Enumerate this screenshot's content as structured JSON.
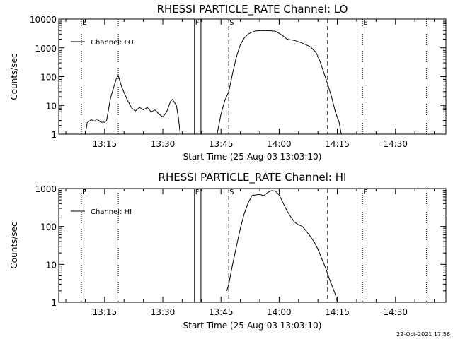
{
  "chart_data": [
    {
      "type": "line",
      "title": "RHESSI PARTICLE_RATE Channel: LO",
      "xlabel": "Start Time (25-Aug-03 13:03:10)",
      "ylabel": "Counts/sec",
      "yscale": "log",
      "ylim": [
        1,
        10000
      ],
      "yticks": [
        "1",
        "10",
        "100",
        "1000",
        "10000"
      ],
      "xticks": [
        "13:15",
        "13:30",
        "13:45",
        "14:00",
        "14:15",
        "14:30"
      ],
      "legend": "Channel: LO",
      "legend_position": "top-left",
      "flags": [
        "E",
        "F",
        "S",
        "E"
      ],
      "series": [
        {
          "name": "Channel: LO",
          "points": [
            [
              "13:10:00",
              1.0
            ],
            [
              "13:10:30",
              2.5
            ],
            [
              "13:11:30",
              3.2
            ],
            [
              "13:12:30",
              2.8
            ],
            [
              "13:13:00",
              3.4
            ],
            [
              "13:14:00",
              2.6
            ],
            [
              "13:15:00",
              2.6
            ],
            [
              "13:15:30",
              3.0
            ],
            [
              "13:16:30",
              18
            ],
            [
              "13:17:30",
              50
            ],
            [
              "13:18:00",
              85
            ],
            [
              "13:18:30",
              110
            ],
            [
              "13:19:00",
              65
            ],
            [
              "13:19:30",
              40
            ],
            [
              "13:20:00",
              28
            ],
            [
              "13:21:00",
              14
            ],
            [
              "13:22:00",
              8
            ],
            [
              "13:23:00",
              6.5
            ],
            [
              "13:24:00",
              8.5
            ],
            [
              "13:25:00",
              7
            ],
            [
              "13:26:00",
              8.5
            ],
            [
              "13:27:00",
              6
            ],
            [
              "13:28:00",
              7
            ],
            [
              "13:29:00",
              5
            ],
            [
              "13:30:00",
              4
            ],
            [
              "13:31:00",
              6
            ],
            [
              "13:32:00",
              14
            ],
            [
              "13:32:30",
              16
            ],
            [
              "13:33:30",
              10
            ],
            [
              "13:34:00",
              4
            ],
            [
              "13:34:30",
              1.0
            ],
            null,
            [
              "13:44:00",
              1.0
            ],
            [
              "13:45:00",
              5
            ],
            [
              "13:46:00",
              15
            ],
            [
              "13:47:00",
              30
            ],
            [
              "13:48:00",
              130
            ],
            [
              "13:49:00",
              500
            ],
            [
              "13:50:00",
              1300
            ],
            [
              "13:51:00",
              2200
            ],
            [
              "13:52:00",
              3000
            ],
            [
              "13:53:00",
              3500
            ],
            [
              "13:54:00",
              3900
            ],
            [
              "13:56:00",
              4000
            ],
            [
              "13:58:00",
              3900
            ],
            [
              "13:59:00",
              3800
            ],
            [
              "14:00:00",
              3200
            ],
            [
              "14:01:00",
              2600
            ],
            [
              "14:02:00",
              2000
            ],
            [
              "14:04:00",
              1800
            ],
            [
              "14:06:00",
              1450
            ],
            [
              "14:08:00",
              1100
            ],
            [
              "14:09:30",
              700
            ],
            [
              "14:10:30",
              350
            ],
            [
              "14:11:30",
              140
            ],
            [
              "14:12:30",
              55
            ],
            [
              "14:13:30",
              20
            ],
            [
              "14:14:30",
              6
            ],
            [
              "14:15:30",
              2.5
            ],
            [
              "14:16:00",
              1.0
            ]
          ]
        }
      ],
      "vlines": [
        {
          "time": "13:09:00",
          "style": "dotted"
        },
        {
          "time": "13:18:30",
          "style": "dotted"
        },
        {
          "time": "13:38:10",
          "style": "solid"
        },
        {
          "time": "13:39:50",
          "style": "solid"
        },
        {
          "time": "13:47:00",
          "style": "dashed"
        },
        {
          "time": "14:12:30",
          "style": "dashed"
        },
        {
          "time": "14:21:30",
          "style": "dotted"
        },
        {
          "time": "14:38:00",
          "style": "dotted"
        }
      ]
    },
    {
      "type": "line",
      "title": "RHESSI PARTICLE_RATE Channel: HI",
      "xlabel": "Start Time (25-Aug-03 13:03:10)",
      "ylabel": "Counts/sec",
      "yscale": "log",
      "ylim": [
        1,
        1000
      ],
      "yticks": [
        "1",
        "10",
        "100",
        "1000"
      ],
      "xticks": [
        "13:15",
        "13:30",
        "13:45",
        "14:00",
        "14:15",
        "14:30"
      ],
      "legend": "Channel: HI",
      "legend_position": "top-left",
      "flags": [
        "E",
        "F",
        "S",
        "E"
      ],
      "series": [
        {
          "name": "Channel: HI",
          "points": [
            [
              "13:46:30",
              2.0
            ],
            [
              "13:47:00",
              3.0
            ],
            [
              "13:48:00",
              10
            ],
            [
              "13:49:00",
              30
            ],
            [
              "13:50:00",
              90
            ],
            [
              "13:51:00",
              220
            ],
            [
              "13:52:00",
              420
            ],
            [
              "13:53:00",
              650
            ],
            [
              "13:54:00",
              680
            ],
            [
              "13:55:00",
              700
            ],
            [
              "13:56:00",
              650
            ],
            [
              "13:57:00",
              780
            ],
            [
              "13:58:00",
              880
            ],
            [
              "13:59:00",
              860
            ],
            [
              "14:00:00",
              680
            ],
            [
              "14:01:00",
              420
            ],
            [
              "14:02:00",
              260
            ],
            [
              "14:03:00",
              180
            ],
            [
              "14:04:00",
              130
            ],
            [
              "14:05:00",
              110
            ],
            [
              "14:06:00",
              100
            ],
            [
              "14:07:00",
              75
            ],
            [
              "14:08:00",
              55
            ],
            [
              "14:09:00",
              40
            ],
            [
              "14:10:00",
              25
            ],
            [
              "14:11:00",
              14
            ],
            [
              "14:12:00",
              8
            ],
            [
              "14:13:00",
              4
            ],
            [
              "14:14:00",
              2.2
            ],
            [
              "14:14:30",
              1.6
            ],
            [
              "14:15:00",
              1.0
            ]
          ]
        }
      ],
      "vlines": [
        {
          "time": "13:09:00",
          "style": "dotted"
        },
        {
          "time": "13:18:30",
          "style": "dotted"
        },
        {
          "time": "13:38:10",
          "style": "solid"
        },
        {
          "time": "13:39:50",
          "style": "solid"
        },
        {
          "time": "13:47:00",
          "style": "dashed"
        },
        {
          "time": "14:12:30",
          "style": "dashed"
        },
        {
          "time": "14:21:30",
          "style": "dotted"
        },
        {
          "time": "14:38:00",
          "style": "dotted"
        }
      ]
    }
  ],
  "timestamp": "22-Oct-2021 17:56"
}
